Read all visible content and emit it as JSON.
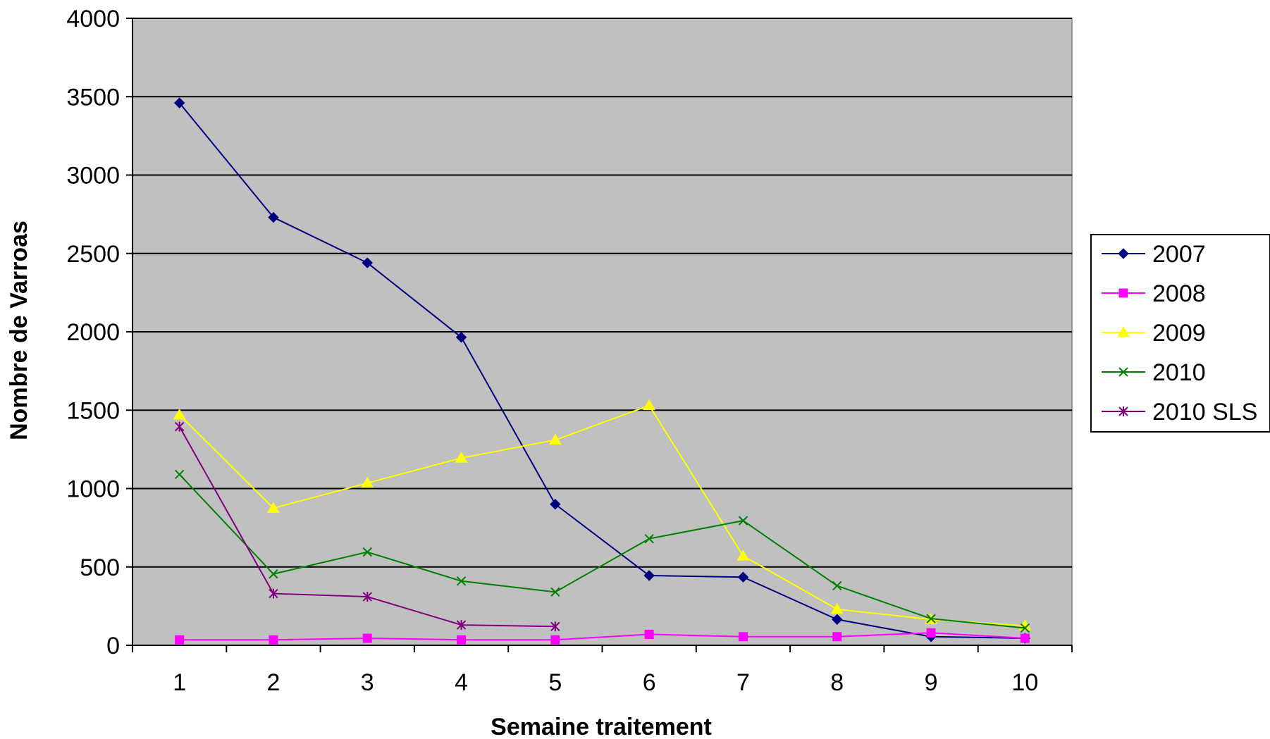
{
  "chart_data": {
    "type": "line",
    "title": "",
    "xlabel": "Semaine traitement",
    "ylabel": "Nombre de Varroas",
    "categories": [
      "1",
      "2",
      "3",
      "4",
      "5",
      "6",
      "7",
      "8",
      "9",
      "10"
    ],
    "ylim": [
      0,
      4000
    ],
    "yticks": [
      "0",
      "500",
      "1000",
      "1500",
      "2000",
      "2500",
      "3000",
      "3500",
      "4000"
    ],
    "grid": true,
    "legend_position": "right",
    "plot_background": "#c0c0c0",
    "series": [
      {
        "name": "2007",
        "color": "#000080",
        "marker": "diamond",
        "values": [
          3460,
          2730,
          2440,
          1965,
          900,
          445,
          435,
          165,
          55,
          45
        ]
      },
      {
        "name": "2008",
        "color": "#ff00ff",
        "marker": "square",
        "values": [
          35,
          35,
          45,
          35,
          35,
          70,
          55,
          55,
          80,
          45
        ]
      },
      {
        "name": "2009",
        "color": "#ffff00",
        "marker": "triangle",
        "values": [
          1470,
          875,
          1035,
          1195,
          1310,
          1530,
          570,
          230,
          165,
          125
        ]
      },
      {
        "name": "2010",
        "color": "#008000",
        "marker": "x",
        "values": [
          1090,
          455,
          595,
          410,
          340,
          680,
          795,
          380,
          170,
          110
        ]
      },
      {
        "name": "2010 SLS",
        "color": "#800080",
        "marker": "star",
        "values": [
          1395,
          330,
          310,
          130,
          120,
          null,
          null,
          null,
          null,
          null
        ]
      }
    ]
  }
}
